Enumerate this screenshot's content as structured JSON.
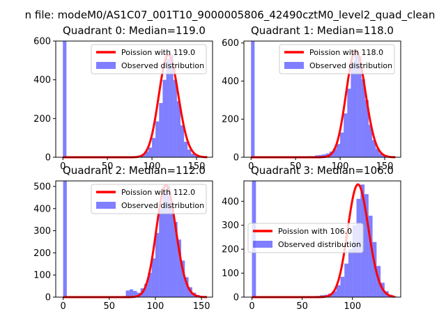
{
  "figure": {
    "suptitle": "n file: modeM0/AS1C07_001T10_9000005806_42490cztM0_level2_quad_clean"
  },
  "colors": {
    "hist": "#0000ff",
    "hist_opacity": 0.5,
    "fit": "#ff0000",
    "axes": "#000000"
  },
  "chart_data": [
    {
      "type": "bar",
      "title": "Quadrant 0: Median=119.0",
      "median": 119,
      "xlim": [
        -8,
        168
      ],
      "ylim": [
        0,
        600
      ],
      "xticks": [
        0,
        50,
        100,
        150
      ],
      "yticks": [
        0,
        200,
        400,
        600
      ],
      "legend_loc": "upper-right",
      "legend": [
        "Poission with 119.0",
        "Observed distribution"
      ],
      "bin_width": 4,
      "bins": [
        [
          0,
          600
        ],
        [
          68,
          2
        ],
        [
          72,
          2
        ],
        [
          76,
          4
        ],
        [
          80,
          5
        ],
        [
          84,
          10
        ],
        [
          88,
          15
        ],
        [
          92,
          30
        ],
        [
          96,
          50
        ],
        [
          100,
          100
        ],
        [
          104,
          185
        ],
        [
          108,
          280
        ],
        [
          112,
          400
        ],
        [
          116,
          510
        ],
        [
          120,
          530
        ],
        [
          124,
          400
        ],
        [
          128,
          290
        ],
        [
          132,
          165
        ],
        [
          136,
          80
        ],
        [
          140,
          40
        ],
        [
          144,
          18
        ],
        [
          148,
          8
        ],
        [
          152,
          4
        ],
        [
          156,
          2
        ],
        [
          160,
          1
        ]
      ]
    },
    {
      "type": "bar",
      "title": "Quadrant 1: Median=118.0",
      "median": 118,
      "xlim": [
        -8,
        168
      ],
      "ylim": [
        0,
        610
      ],
      "xticks": [
        0,
        50,
        100,
        150
      ],
      "yticks": [
        0,
        200,
        400,
        600
      ],
      "legend_loc": "upper-right",
      "legend": [
        "Poission with 118.0",
        "Observed distribution"
      ],
      "bin_width": 4,
      "bins": [
        [
          0,
          610
        ],
        [
          60,
          4
        ],
        [
          64,
          6
        ],
        [
          68,
          6
        ],
        [
          72,
          10
        ],
        [
          76,
          12
        ],
        [
          80,
          15
        ],
        [
          84,
          20
        ],
        [
          88,
          30
        ],
        [
          92,
          45
        ],
        [
          96,
          70
        ],
        [
          100,
          130
        ],
        [
          104,
          230
        ],
        [
          108,
          360
        ],
        [
          112,
          490
        ],
        [
          116,
          560
        ],
        [
          120,
          530
        ],
        [
          124,
          410
        ],
        [
          128,
          300
        ],
        [
          132,
          170
        ],
        [
          136,
          90
        ],
        [
          140,
          45
        ],
        [
          144,
          20
        ],
        [
          148,
          10
        ],
        [
          152,
          5
        ],
        [
          156,
          2
        ]
      ]
    },
    {
      "type": "bar",
      "title": "Quadrant 2: Median=112.0",
      "median": 112,
      "xlim": [
        -8,
        162
      ],
      "ylim": [
        0,
        525
      ],
      "xticks": [
        0,
        50,
        100,
        150
      ],
      "yticks": [
        0,
        100,
        200,
        300,
        400,
        500
      ],
      "legend_loc": "upper-right",
      "legend": [
        "Poission with 112.0",
        "Observed distribution"
      ],
      "bin_width": 4,
      "bins": [
        [
          0,
          525
        ],
        [
          60,
          3
        ],
        [
          64,
          5
        ],
        [
          68,
          30
        ],
        [
          72,
          35
        ],
        [
          76,
          28
        ],
        [
          80,
          20
        ],
        [
          84,
          40
        ],
        [
          88,
          60
        ],
        [
          92,
          110
        ],
        [
          96,
          175
        ],
        [
          100,
          290
        ],
        [
          104,
          400
        ],
        [
          108,
          470
        ],
        [
          112,
          505
        ],
        [
          116,
          410
        ],
        [
          120,
          340
        ],
        [
          124,
          260
        ],
        [
          128,
          165
        ],
        [
          132,
          90
        ],
        [
          136,
          45
        ],
        [
          140,
          20
        ],
        [
          144,
          10
        ],
        [
          148,
          5
        ],
        [
          152,
          2
        ]
      ]
    },
    {
      "type": "bar",
      "title": "Quadrant 3: Median=106.0",
      "median": 106,
      "xlim": [
        -8,
        148
      ],
      "ylim": [
        0,
        485
      ],
      "xticks": [
        0,
        50,
        100
      ],
      "yticks": [
        0,
        100,
        200,
        300,
        400
      ],
      "legend_loc": "center-left",
      "legend": [
        "Poission with 106.0",
        "Observed distribution"
      ],
      "bin_width": 4,
      "bins": [
        [
          0,
          485
        ],
        [
          60,
          3
        ],
        [
          64,
          5
        ],
        [
          68,
          8
        ],
        [
          72,
          10
        ],
        [
          76,
          15
        ],
        [
          80,
          25
        ],
        [
          84,
          50
        ],
        [
          88,
          85
        ],
        [
          92,
          140
        ],
        [
          96,
          200
        ],
        [
          100,
          300
        ],
        [
          104,
          410
        ],
        [
          108,
          470
        ],
        [
          112,
          430
        ],
        [
          116,
          340
        ],
        [
          120,
          230
        ],
        [
          124,
          130
        ],
        [
          128,
          60
        ],
        [
          132,
          25
        ],
        [
          136,
          10
        ],
        [
          140,
          4
        ]
      ]
    }
  ]
}
